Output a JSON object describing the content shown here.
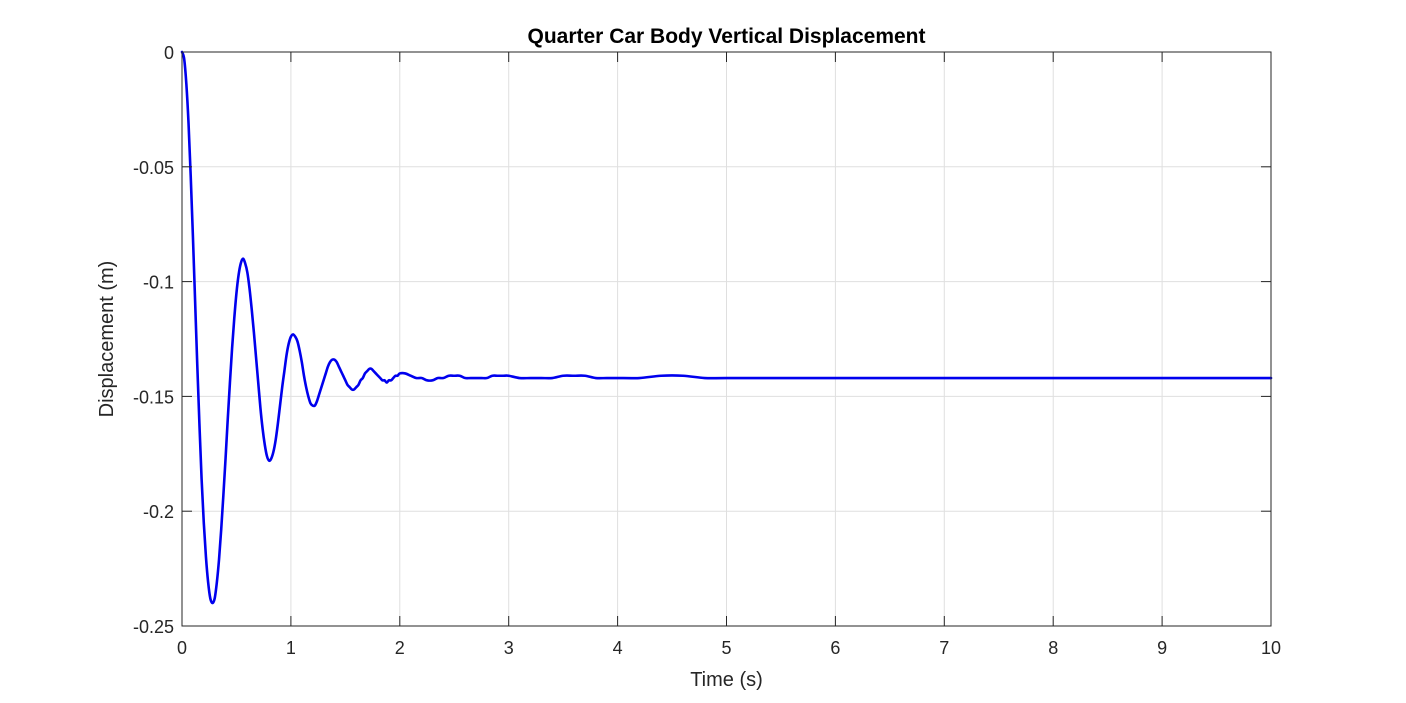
{
  "chart_data": {
    "type": "line",
    "title": "Quarter Car Body Vertical Displacement",
    "xlabel": "Time (s)",
    "ylabel": "Displacement (m)",
    "xlim": [
      0,
      10
    ],
    "ylim": [
      -0.25,
      0
    ],
    "xticks": [
      0,
      1,
      2,
      3,
      4,
      5,
      6,
      7,
      8,
      9,
      10
    ],
    "xtick_labels": [
      "0",
      "1",
      "2",
      "3",
      "4",
      "5",
      "6",
      "7",
      "8",
      "9",
      "10"
    ],
    "yticks": [
      -0.25,
      -0.2,
      -0.15,
      -0.1,
      -0.05,
      0
    ],
    "ytick_labels": [
      "-0.25",
      "-0.2",
      "-0.15",
      "-0.1",
      "-0.05",
      "0"
    ],
    "grid": true,
    "legend": "none",
    "colors": {
      "series": "#0000ee",
      "axes": "#262626",
      "grid": "#dfdfdf"
    },
    "series": [
      {
        "color": "#0000ee",
        "x": [
          0,
          0.02,
          0.04,
          0.06,
          0.08,
          0.1,
          0.12,
          0.14,
          0.16,
          0.18,
          0.2,
          0.22,
          0.24,
          0.26,
          0.28,
          0.3,
          0.32,
          0.34,
          0.36,
          0.38,
          0.4,
          0.42,
          0.44,
          0.46,
          0.48,
          0.5,
          0.52,
          0.54,
          0.56,
          0.58,
          0.6,
          0.62,
          0.64,
          0.66,
          0.68,
          0.7,
          0.72,
          0.74,
          0.76,
          0.78,
          0.8,
          0.82,
          0.84,
          0.86,
          0.88,
          0.9,
          0.92,
          0.94,
          0.96,
          0.98,
          1.0,
          1.02,
          1.04,
          1.06,
          1.08,
          1.1,
          1.12,
          1.14,
          1.16,
          1.18,
          1.2,
          1.22,
          1.24,
          1.26,
          1.28,
          1.3,
          1.32,
          1.34,
          1.36,
          1.38,
          1.4,
          1.42,
          1.44,
          1.46,
          1.48,
          1.5,
          1.52,
          1.54,
          1.56,
          1.58,
          1.6,
          1.62,
          1.64,
          1.66,
          1.68,
          1.7,
          1.72,
          1.74,
          1.76,
          1.78,
          1.8,
          1.82,
          1.84,
          1.86,
          1.88,
          1.9,
          1.92,
          1.94,
          1.96,
          1.98,
          2.0,
          2.05,
          2.1,
          2.15,
          2.2,
          2.25,
          2.3,
          2.35,
          2.4,
          2.45,
          2.5,
          2.55,
          2.6,
          2.65,
          2.7,
          2.75,
          2.8,
          2.85,
          2.9,
          2.95,
          3.0,
          3.1,
          3.2,
          3.3,
          3.4,
          3.5,
          3.6,
          3.7,
          3.8,
          3.9,
          4.0,
          4.2,
          4.4,
          4.6,
          4.8,
          5.0,
          5.5,
          6.0,
          6.5,
          7.0,
          7.5,
          8.0,
          8.5,
          9.0,
          9.5,
          10.0
        ],
        "y": [
          0,
          -0.003,
          -0.014,
          -0.031,
          -0.054,
          -0.08,
          -0.108,
          -0.136,
          -0.162,
          -0.186,
          -0.205,
          -0.22,
          -0.231,
          -0.238,
          -0.24,
          -0.238,
          -0.231,
          -0.221,
          -0.208,
          -0.193,
          -0.177,
          -0.16,
          -0.144,
          -0.129,
          -0.116,
          -0.105,
          -0.097,
          -0.092,
          -0.09,
          -0.092,
          -0.096,
          -0.103,
          -0.112,
          -0.122,
          -0.133,
          -0.144,
          -0.155,
          -0.164,
          -0.171,
          -0.176,
          -0.178,
          -0.177,
          -0.174,
          -0.169,
          -0.162,
          -0.154,
          -0.146,
          -0.139,
          -0.132,
          -0.127,
          -0.124,
          -0.123,
          -0.124,
          -0.126,
          -0.13,
          -0.135,
          -0.141,
          -0.146,
          -0.15,
          -0.153,
          -0.154,
          -0.154,
          -0.152,
          -0.149,
          -0.146,
          -0.143,
          -0.14,
          -0.137,
          -0.135,
          -0.134,
          -0.134,
          -0.135,
          -0.137,
          -0.139,
          -0.141,
          -0.143,
          -0.145,
          -0.146,
          -0.147,
          -0.147,
          -0.146,
          -0.145,
          -0.143,
          -0.142,
          -0.14,
          -0.139,
          -0.138,
          -0.138,
          -0.139,
          -0.14,
          -0.141,
          -0.142,
          -0.143,
          -0.143,
          -0.144,
          -0.143,
          -0.143,
          -0.142,
          -0.141,
          -0.141,
          -0.14,
          -0.14,
          -0.141,
          -0.142,
          -0.142,
          -0.143,
          -0.143,
          -0.142,
          -0.142,
          -0.141,
          -0.141,
          -0.141,
          -0.142,
          -0.142,
          -0.142,
          -0.142,
          -0.142,
          -0.141,
          -0.141,
          -0.141,
          -0.141,
          -0.142,
          -0.142,
          -0.142,
          -0.142,
          -0.141,
          -0.141,
          -0.141,
          -0.142,
          -0.142,
          -0.142,
          -0.142,
          -0.141,
          -0.141,
          -0.142,
          -0.142,
          -0.142,
          -0.142,
          -0.142,
          -0.142,
          -0.142,
          -0.142,
          -0.142,
          -0.142,
          -0.142,
          -0.142
        ]
      }
    ]
  }
}
